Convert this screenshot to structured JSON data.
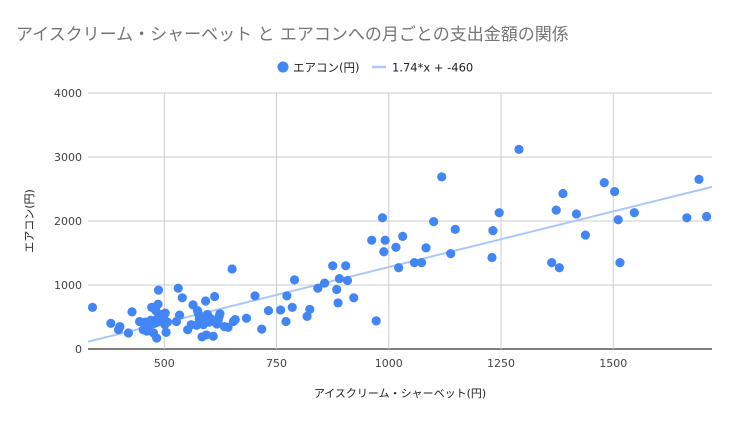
{
  "chart_data": {
    "type": "scatter",
    "title": "アイスクリーム・シャーベット と エアコンへの月ごとの支出金額の関係",
    "xlabel": "アイスクリーム・シャーベット(円)",
    "ylabel": "エアコン(円)",
    "xlim": [
      330,
      1720
    ],
    "ylim": [
      0,
      4000
    ],
    "x_ticks": [
      "500",
      "750",
      "1000",
      "1250",
      "1500"
    ],
    "y_ticks": [
      "0",
      "1000",
      "2000",
      "3000",
      "4000"
    ],
    "grid": true,
    "legend_position": "top",
    "series": [
      {
        "name": "エアコン(円)",
        "color": "#4285f4",
        "points": [
          [
            340,
            650
          ],
          [
            381,
            400
          ],
          [
            398,
            300
          ],
          [
            401,
            350
          ],
          [
            420,
            250
          ],
          [
            428,
            580
          ],
          [
            445,
            430
          ],
          [
            453,
            300
          ],
          [
            458,
            420
          ],
          [
            461,
            280
          ],
          [
            466,
            330
          ],
          [
            470,
            450
          ],
          [
            472,
            650
          ],
          [
            476,
            250
          ],
          [
            478,
            400
          ],
          [
            481,
            600
          ],
          [
            483,
            170
          ],
          [
            484,
            470
          ],
          [
            485,
            420
          ],
          [
            486,
            700
          ],
          [
            487,
            920
          ],
          [
            491,
            540
          ],
          [
            495,
            440
          ],
          [
            498,
            500
          ],
          [
            501,
            380
          ],
          [
            502,
            560
          ],
          [
            504,
            260
          ],
          [
            507,
            420
          ],
          [
            527,
            430
          ],
          [
            531,
            950
          ],
          [
            534,
            530
          ],
          [
            540,
            800
          ],
          [
            552,
            300
          ],
          [
            560,
            380
          ],
          [
            564,
            690
          ],
          [
            572,
            370
          ],
          [
            574,
            600
          ],
          [
            576,
            550
          ],
          [
            578,
            470
          ],
          [
            580,
            400
          ],
          [
            584,
            190
          ],
          [
            587,
            380
          ],
          [
            590,
            480
          ],
          [
            592,
            750
          ],
          [
            594,
            220
          ],
          [
            596,
            540
          ],
          [
            600,
            420
          ],
          [
            602,
            480
          ],
          [
            606,
            450
          ],
          [
            609,
            200
          ],
          [
            612,
            820
          ],
          [
            617,
            390
          ],
          [
            620,
            450
          ],
          [
            622,
            510
          ],
          [
            624,
            550
          ],
          [
            634,
            350
          ],
          [
            642,
            340
          ],
          [
            651,
            1250
          ],
          [
            654,
            430
          ],
          [
            658,
            460
          ],
          [
            683,
            480
          ],
          [
            702,
            830
          ],
          [
            717,
            310
          ],
          [
            732,
            600
          ],
          [
            759,
            610
          ],
          [
            771,
            430
          ],
          [
            773,
            830
          ],
          [
            785,
            650
          ],
          [
            790,
            1080
          ],
          [
            818,
            510
          ],
          [
            824,
            620
          ],
          [
            842,
            950
          ],
          [
            857,
            1030
          ],
          [
            875,
            1300
          ],
          [
            884,
            930
          ],
          [
            887,
            720
          ],
          [
            890,
            1100
          ],
          [
            904,
            1300
          ],
          [
            908,
            1070
          ],
          [
            922,
            800
          ],
          [
            962,
            1700
          ],
          [
            972,
            440
          ],
          [
            986,
            2050
          ],
          [
            989,
            1520
          ],
          [
            992,
            1700
          ],
          [
            1016,
            1590
          ],
          [
            1022,
            1270
          ],
          [
            1031,
            1760
          ],
          [
            1057,
            1350
          ],
          [
            1073,
            1350
          ],
          [
            1083,
            1580
          ],
          [
            1100,
            1990
          ],
          [
            1118,
            2690
          ],
          [
            1138,
            1490
          ],
          [
            1148,
            1870
          ],
          [
            1230,
            1430
          ],
          [
            1232,
            1850
          ],
          [
            1246,
            2130
          ],
          [
            1290,
            3120
          ],
          [
            1363,
            1350
          ],
          [
            1373,
            2170
          ],
          [
            1380,
            1270
          ],
          [
            1388,
            2430
          ],
          [
            1418,
            2110
          ],
          [
            1438,
            1780
          ],
          [
            1480,
            2600
          ],
          [
            1503,
            2460
          ],
          [
            1511,
            2020
          ],
          [
            1515,
            1350
          ],
          [
            1547,
            2130
          ],
          [
            1664,
            2050
          ],
          [
            1691,
            2650
          ],
          [
            1708,
            2070
          ]
        ]
      }
    ],
    "trendline": {
      "label": "1.74*x + -460",
      "slope": 1.74,
      "intercept": -460,
      "color": "#a9c7f7"
    }
  }
}
